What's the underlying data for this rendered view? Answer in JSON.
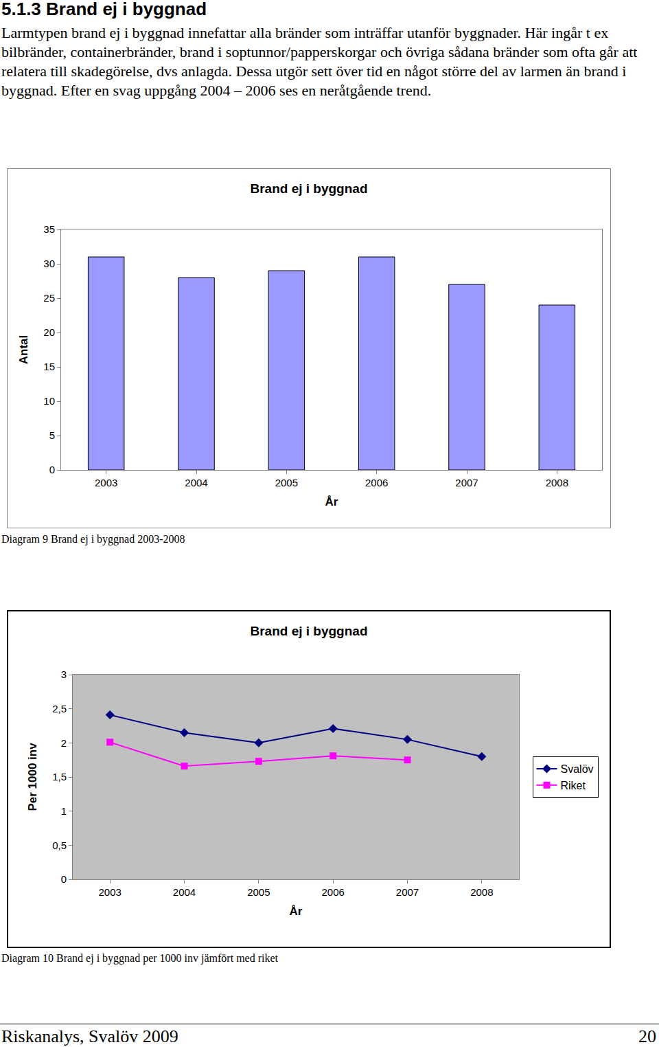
{
  "document": {
    "heading": "5.1.3 Brand ej i byggnad",
    "paragraph": "Larmtypen brand ej i byggnad innefattar alla bränder som inträffar utanför byggnader. Här ingår t ex bilbränder, containerbränder, brand i soptunnor/papperskorgar och övriga sådana bränder som ofta går att relatera till skadegörelse, dvs anlagda. Dessa utgör sett över tid en något större del av larmen än brand i byggnad. Efter en svag uppgång 2004 – 2006 ses en neråtgående trend.",
    "captions": [
      "Diagram 9 Brand ej i byggnad 2003-2008",
      "Diagram 10 Brand ej i byggnad per 1000 inv jämfört med riket"
    ],
    "footer": {
      "left": "Riskanalys, Svalöv 2009",
      "right": "20"
    }
  },
  "chart_data": [
    {
      "type": "bar",
      "title": "Brand ej i byggnad",
      "x_label": "År",
      "y_label": "Antal",
      "categories": [
        "2003",
        "2004",
        "2005",
        "2006",
        "2007",
        "2008"
      ],
      "values": [
        31,
        28,
        29,
        31,
        27,
        24
      ],
      "color": "#9999ff",
      "ylim": [
        0,
        35
      ],
      "yticks": [
        0,
        5,
        10,
        15,
        20,
        25,
        30,
        35
      ],
      "grid": false
    },
    {
      "type": "line",
      "title": "Brand ej i byggnad",
      "x_label": "År",
      "y_label": "Per 1000 inv",
      "categories": [
        "2003",
        "2004",
        "2005",
        "2006",
        "2007",
        "2008"
      ],
      "series": [
        {
          "name": "Svalöv",
          "color": "#000080",
          "marker": "diamond",
          "line_style": "solid",
          "values": [
            2.41,
            2.15,
            2.0,
            2.21,
            2.05,
            1.8
          ]
        },
        {
          "name": "Riket",
          "color": "#ff00ff",
          "marker": "square",
          "line_style": "solid",
          "values": [
            2.01,
            1.66,
            1.73,
            1.81,
            1.75,
            null
          ]
        }
      ],
      "ylim": [
        0,
        3
      ],
      "yticks": [
        0,
        {
          "value": 0.5,
          "label": "0,5"
        },
        1,
        {
          "value": 1.5,
          "label": "1,5"
        },
        2,
        {
          "value": 2.5,
          "label": "2,5"
        },
        3
      ],
      "grid": false,
      "legend": "right"
    }
  ]
}
